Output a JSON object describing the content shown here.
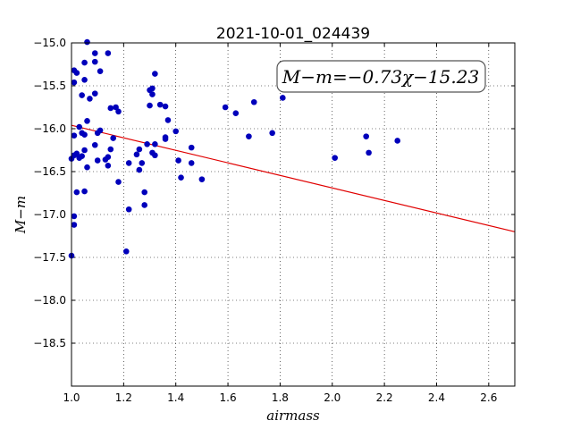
{
  "chart_data": {
    "type": "scatter",
    "title": "2021-10-01_024439",
    "xlabel": "airmass",
    "ylabel": "M−m",
    "xlim": [
      1.0,
      2.7
    ],
    "ylim": [
      -15.0,
      -19.0
    ],
    "y_inverted": true,
    "grid": true,
    "x_ticks": [
      1.0,
      1.2,
      1.4,
      1.6,
      1.8,
      2.0,
      2.2,
      2.4,
      2.6
    ],
    "x_tick_labels": [
      "1.0",
      "1.2",
      "1.4",
      "1.6",
      "1.8",
      "2.0",
      "2.2",
      "2.4",
      "2.6"
    ],
    "y_ticks": [
      -15.0,
      -15.5,
      -16.0,
      -16.5,
      -17.0,
      -17.5,
      -18.0,
      -18.5
    ],
    "y_tick_labels": [
      "−15.0",
      "−15.5",
      "−16.0",
      "−16.5",
      "−17.0",
      "−17.5",
      "−18.0",
      "−18.5"
    ],
    "annotation": "M−m=−0.73χ−15.23",
    "fit": {
      "slope": -0.73,
      "intercept": -15.23,
      "color": "#e00000"
    },
    "marker_color": "#0000bb",
    "series": [
      {
        "points": [
          [
            1.06,
            -14.99
          ],
          [
            1.09,
            -15.12
          ],
          [
            1.14,
            -15.12
          ],
          [
            1.05,
            -15.23
          ],
          [
            1.09,
            -15.22
          ],
          [
            1.01,
            -15.32
          ],
          [
            1.02,
            -15.35
          ],
          [
            1.11,
            -15.33
          ],
          [
            1.05,
            -15.43
          ],
          [
            1.01,
            -15.46
          ],
          [
            1.04,
            -15.61
          ],
          [
            1.07,
            -15.65
          ],
          [
            1.09,
            -15.59
          ],
          [
            1.3,
            -15.55
          ],
          [
            1.31,
            -15.6
          ],
          [
            1.32,
            -15.36
          ],
          [
            1.31,
            -15.53
          ],
          [
            1.3,
            -15.73
          ],
          [
            1.34,
            -15.72
          ],
          [
            1.36,
            -15.74
          ],
          [
            1.15,
            -15.76
          ],
          [
            1.17,
            -15.75
          ],
          [
            1.18,
            -15.8
          ],
          [
            1.06,
            -15.91
          ],
          [
            1.03,
            -15.98
          ],
          [
            1.04,
            -16.05
          ],
          [
            1.05,
            -16.07
          ],
          [
            1.1,
            -16.05
          ],
          [
            1.11,
            -16.02
          ],
          [
            1.01,
            -16.08
          ],
          [
            1.16,
            -16.11
          ],
          [
            1.37,
            -15.9
          ],
          [
            1.4,
            -16.03
          ],
          [
            1.36,
            -16.1
          ],
          [
            1.36,
            -16.12
          ],
          [
            1.09,
            -16.19
          ],
          [
            1.15,
            -16.24
          ],
          [
            1.05,
            -16.25
          ],
          [
            1.02,
            -16.29
          ],
          [
            1.04,
            -16.32
          ],
          [
            1.01,
            -16.31
          ],
          [
            1.03,
            -16.34
          ],
          [
            1.0,
            -16.35
          ],
          [
            1.14,
            -16.33
          ],
          [
            1.13,
            -16.36
          ],
          [
            1.1,
            -16.37
          ],
          [
            1.32,
            -16.18
          ],
          [
            1.29,
            -16.18
          ],
          [
            1.26,
            -16.24
          ],
          [
            1.25,
            -16.3
          ],
          [
            1.31,
            -16.28
          ],
          [
            1.32,
            -16.31
          ],
          [
            1.22,
            -16.4
          ],
          [
            1.27,
            -16.4
          ],
          [
            1.06,
            -16.45
          ],
          [
            1.14,
            -16.43
          ],
          [
            1.26,
            -16.48
          ],
          [
            1.41,
            -16.37
          ],
          [
            1.46,
            -16.22
          ],
          [
            1.46,
            -16.4
          ],
          [
            1.42,
            -16.57
          ],
          [
            1.5,
            -16.59
          ],
          [
            1.18,
            -16.62
          ],
          [
            1.05,
            -16.73
          ],
          [
            1.02,
            -16.74
          ],
          [
            1.28,
            -16.74
          ],
          [
            1.28,
            -16.89
          ],
          [
            1.22,
            -16.94
          ],
          [
            1.01,
            -17.02
          ],
          [
            1.01,
            -17.12
          ],
          [
            1.21,
            -17.43
          ],
          [
            1.0,
            -17.48
          ],
          [
            1.59,
            -15.75
          ],
          [
            1.63,
            -15.82
          ],
          [
            1.7,
            -15.69
          ],
          [
            1.81,
            -15.64
          ],
          [
            1.68,
            -16.09
          ],
          [
            1.77,
            -16.05
          ],
          [
            2.01,
            -16.34
          ],
          [
            2.13,
            -16.09
          ],
          [
            2.14,
            -16.28
          ],
          [
            2.25,
            -16.14
          ]
        ]
      }
    ]
  }
}
